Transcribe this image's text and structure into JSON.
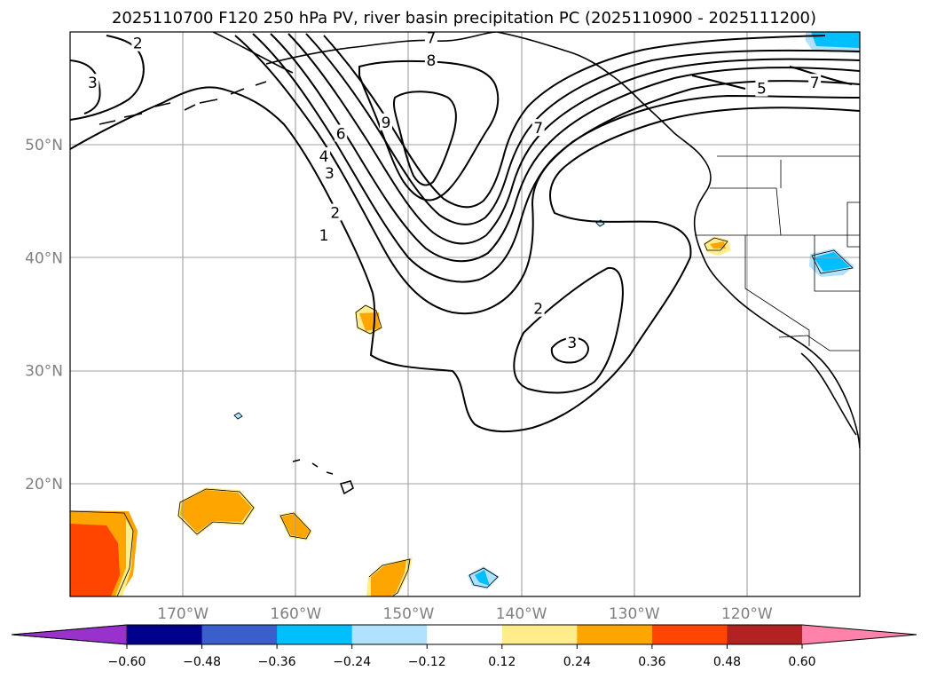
{
  "title": "2025110700 F120 250 hPa PV, river basin precipitation PC (2025110900 - 2025111200)",
  "map": {
    "projection": "PlateCarree",
    "lon_range": [
      -180,
      -110
    ],
    "lat_range": [
      10,
      60
    ],
    "grid": true,
    "lat_ticks": [
      {
        "value": 50,
        "label": "50°N"
      },
      {
        "value": 40,
        "label": "40°N"
      },
      {
        "value": 30,
        "label": "30°N"
      },
      {
        "value": 20,
        "label": "20°N"
      }
    ],
    "lon_ticks": [
      {
        "value": -170,
        "label": "170°W"
      },
      {
        "value": -160,
        "label": "160°W"
      },
      {
        "value": -150,
        "label": "150°W"
      },
      {
        "value": -140,
        "label": "140°W"
      },
      {
        "value": -130,
        "label": "130°W"
      },
      {
        "value": -120,
        "label": "120°W"
      }
    ]
  },
  "contour_labels": [
    {
      "text": "2",
      "lon": -174,
      "lat": 59
    },
    {
      "text": "3",
      "lon": -178,
      "lat": 55.5
    },
    {
      "text": "7",
      "lon": -148,
      "lat": 59.5
    },
    {
      "text": "8",
      "lon": -148,
      "lat": 57.5
    },
    {
      "text": "9",
      "lon": -152,
      "lat": 52
    },
    {
      "text": "6",
      "lon": -156,
      "lat": 51
    },
    {
      "text": "4",
      "lon": -157.5,
      "lat": 49
    },
    {
      "text": "3",
      "lon": -157,
      "lat": 47.5
    },
    {
      "text": "2",
      "lon": -156.5,
      "lat": 44
    },
    {
      "text": "1",
      "lon": -157.5,
      "lat": 42
    },
    {
      "text": "7",
      "lon": -138.5,
      "lat": 51.5
    },
    {
      "text": "5",
      "lon": -118.7,
      "lat": 55
    },
    {
      "text": "7",
      "lon": -114,
      "lat": 55.5
    },
    {
      "text": "2",
      "lon": -138.5,
      "lat": 35.5
    },
    {
      "text": "3",
      "lon": -135.5,
      "lat": 32.5
    }
  ],
  "colorbar": {
    "colors": [
      "#9932cc",
      "#00008b",
      "#3a5fcd",
      "#00bfff",
      "#b0e2ff",
      "#ffffff",
      "#ffec8b",
      "#ffa500",
      "#ff4500",
      "#b22222",
      "#ff82ab"
    ],
    "tick_labels": [
      "−0.60",
      "−0.48",
      "−0.36",
      "−0.24",
      "−0.12",
      "0.12",
      "0.24",
      "0.36",
      "0.48",
      "0.60"
    ],
    "levels": [
      -0.6,
      -0.48,
      -0.36,
      -0.24,
      -0.12,
      0.12,
      0.24,
      0.36,
      0.48,
      0.6
    ]
  }
}
